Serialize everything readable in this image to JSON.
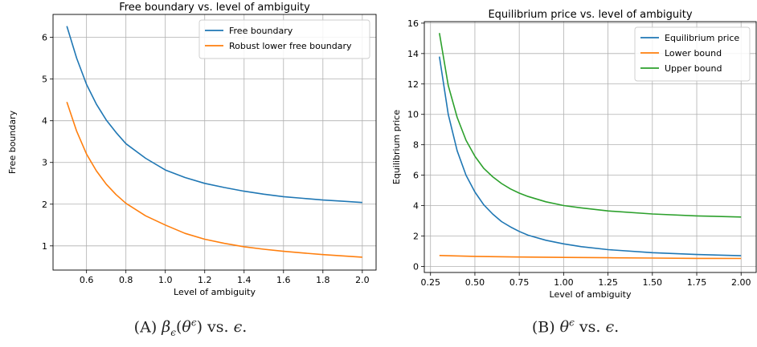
{
  "chart_data": [
    {
      "type": "line",
      "title": "Free boundary vs. level of ambiguity",
      "xlabel": "Level of ambiguity",
      "ylabel": "Free boundary",
      "xlim": [
        0.43,
        2.07
      ],
      "ylim": [
        0.42,
        6.55
      ],
      "xticks": [
        0.6,
        0.8,
        1.0,
        1.2,
        1.4,
        1.6,
        1.8,
        2.0
      ],
      "xtick_labels": [
        "0.6",
        "0.8",
        "1.0",
        "1.2",
        "1.4",
        "1.6",
        "1.8",
        "2.0"
      ],
      "yticks": [
        1,
        2,
        3,
        4,
        5,
        6
      ],
      "ytick_labels": [
        "1",
        "2",
        "3",
        "4",
        "5",
        "6"
      ],
      "grid": true,
      "legend": "top-right",
      "series": [
        {
          "name": "Free boundary",
          "color": "#1f77b4",
          "x": [
            0.5,
            0.55,
            0.6,
            0.65,
            0.7,
            0.75,
            0.8,
            0.9,
            1.0,
            1.1,
            1.2,
            1.3,
            1.4,
            1.5,
            1.6,
            1.7,
            1.8,
            1.9,
            2.0
          ],
          "y": [
            6.27,
            5.5,
            4.87,
            4.4,
            4.02,
            3.72,
            3.45,
            3.1,
            2.82,
            2.64,
            2.5,
            2.4,
            2.31,
            2.24,
            2.18,
            2.14,
            2.1,
            2.07,
            2.04
          ]
        },
        {
          "name": "Robust lower free boundary",
          "color": "#ff7f0e",
          "x": [
            0.5,
            0.55,
            0.6,
            0.65,
            0.7,
            0.75,
            0.8,
            0.9,
            1.0,
            1.1,
            1.2,
            1.3,
            1.4,
            1.5,
            1.6,
            1.7,
            1.8,
            1.9,
            2.0
          ],
          "y": [
            4.45,
            3.75,
            3.2,
            2.8,
            2.48,
            2.23,
            2.02,
            1.72,
            1.5,
            1.3,
            1.16,
            1.06,
            0.98,
            0.92,
            0.87,
            0.83,
            0.79,
            0.76,
            0.73
          ]
        }
      ]
    },
    {
      "type": "line",
      "title": "Equilibrium price vs. level of ambiguity",
      "xlabel": "Level of ambiguity",
      "ylabel": "Equilibrium price",
      "xlim": [
        0.215,
        2.085
      ],
      "ylim": [
        -0.4,
        16.1
      ],
      "xticks": [
        0.25,
        0.5,
        0.75,
        1.0,
        1.25,
        1.5,
        1.75,
        2.0
      ],
      "xtick_labels": [
        "0.25",
        "0.50",
        "0.75",
        "1.00",
        "1.25",
        "1.50",
        "1.75",
        "2.00"
      ],
      "yticks": [
        0,
        2,
        4,
        6,
        8,
        10,
        12,
        14,
        16
      ],
      "ytick_labels": [
        "0",
        "2",
        "4",
        "6",
        "8",
        "10",
        "12",
        "14",
        "16"
      ],
      "grid": true,
      "legend": "top-right",
      "series": [
        {
          "name": "Equilibrium price",
          "color": "#1f77b4",
          "x": [
            0.3,
            0.35,
            0.4,
            0.45,
            0.5,
            0.55,
            0.6,
            0.65,
            0.7,
            0.75,
            0.8,
            0.9,
            1.0,
            1.1,
            1.25,
            1.5,
            1.75,
            2.0
          ],
          "y": [
            13.8,
            10.0,
            7.6,
            6.0,
            4.9,
            4.05,
            3.45,
            2.95,
            2.6,
            2.3,
            2.05,
            1.72,
            1.48,
            1.3,
            1.1,
            0.9,
            0.78,
            0.7
          ]
        },
        {
          "name": "Lower bound",
          "color": "#ff7f0e",
          "x": [
            0.3,
            0.5,
            0.75,
            1.0,
            1.25,
            1.5,
            1.75,
            2.0
          ],
          "y": [
            0.72,
            0.66,
            0.62,
            0.59,
            0.57,
            0.55,
            0.53,
            0.52
          ]
        },
        {
          "name": "Upper bound",
          "color": "#2ca02c",
          "x": [
            0.3,
            0.35,
            0.4,
            0.45,
            0.5,
            0.55,
            0.6,
            0.65,
            0.7,
            0.75,
            0.8,
            0.9,
            1.0,
            1.1,
            1.25,
            1.5,
            1.75,
            2.0
          ],
          "y": [
            15.35,
            11.9,
            9.8,
            8.3,
            7.25,
            6.45,
            5.9,
            5.45,
            5.1,
            4.82,
            4.6,
            4.25,
            4.0,
            3.85,
            3.65,
            3.45,
            3.32,
            3.25
          ]
        }
      ]
    }
  ],
  "captions": {
    "a_prefix": "(A) ",
    "a_math": "βϵ(θϵ) vs. ϵ.",
    "b_prefix": "(B) ",
    "b_math": "θϵ vs. ϵ."
  }
}
